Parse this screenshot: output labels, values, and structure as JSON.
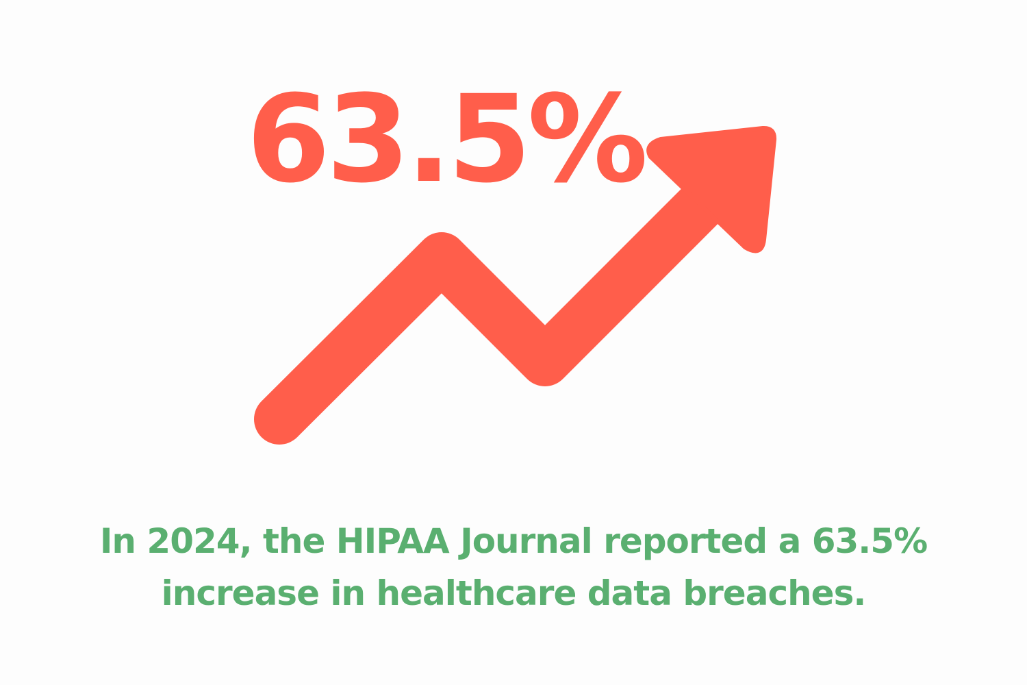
{
  "stat": {
    "value": "63.5%"
  },
  "caption": {
    "line1": "In 2024, the HIPAA Journal reported a 63.5%",
    "line2": "increase in healthcare data breaches."
  },
  "graphic": {
    "icon": "trend-up-arrow-icon"
  },
  "colors": {
    "accent": "#ff5e4b",
    "caption": "#5aaf70",
    "background": "#fdfdfd"
  }
}
